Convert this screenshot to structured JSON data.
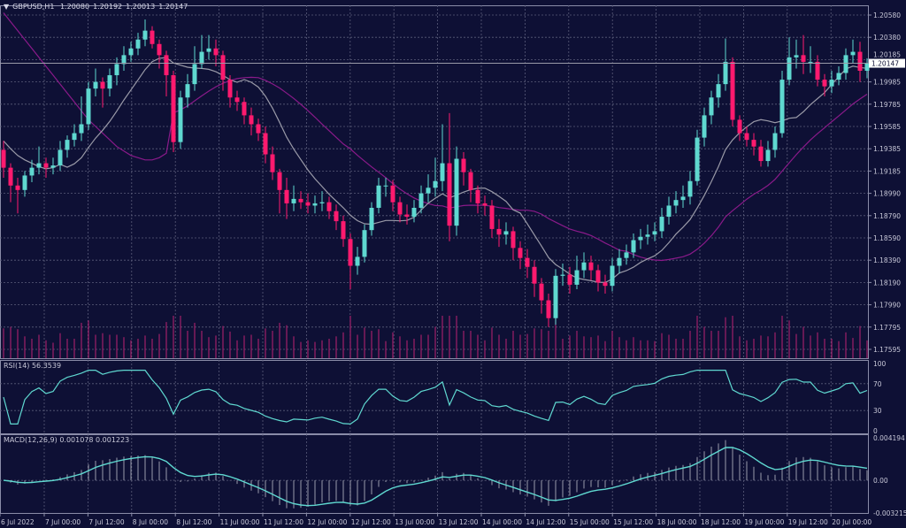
{
  "header": {
    "symbol": "GBPUSD,H1",
    "open": "1.20080",
    "high": "1.20192",
    "low": "1.20013",
    "close": "1.20147"
  },
  "colors": {
    "background": "#0e1035",
    "bull": "#5fd8d0",
    "bear": "#ff1a6e",
    "ma_fast": "#9a9aa8",
    "ma_slow": "#8a1a8a",
    "volume": "#a0206a",
    "grid": "#5a5c7a",
    "indicator": "#5fd8d0"
  },
  "chart_data": [
    {
      "type": "candlestick",
      "title": "GBPUSD,H1",
      "price_axis_ticks": [
        "1.20580",
        "1.20380",
        "1.20185",
        "1.19985",
        "1.19785",
        "1.19585",
        "1.19385",
        "1.19185",
        "1.18990",
        "1.18790",
        "1.18590",
        "1.18390",
        "1.18190",
        "1.17990",
        "1.17795",
        "1.17595"
      ],
      "current_price_label": "1.20147",
      "time_axis_ticks": [
        "6 Jul 2022",
        "7 Jul 00:00",
        "7 Jul 12:00",
        "8 Jul 00:00",
        "8 Jul 12:00",
        "11 Jul 00:00",
        "11 Jul 12:00",
        "12 Jul 00:00",
        "12 Jul 12:00",
        "13 Jul 00:00",
        "13 Jul 12:00",
        "14 Jul 00:00",
        "14 Jul 12:00",
        "15 Jul 00:00",
        "15 Jul 12:00",
        "18 Jul 00:00",
        "18 Jul 12:00",
        "19 Jul 00:00",
        "19 Jul 12:00",
        "20 Jul 00:00"
      ],
      "ylim": [
        1.1755,
        1.2062
      ],
      "grid": true,
      "overlays": [
        "moving average (gray)",
        "moving average (purple)",
        "volume"
      ],
      "candles_ohlc": [
        [
          1.1937,
          1.1945,
          1.1912,
          1.1921
        ],
        [
          1.1921,
          1.1925,
          1.189,
          1.1905
        ],
        [
          1.1905,
          1.1912,
          1.188,
          1.1901
        ],
        [
          1.1901,
          1.1918,
          1.1895,
          1.1914
        ],
        [
          1.1914,
          1.1928,
          1.1908,
          1.1921
        ],
        [
          1.1921,
          1.194,
          1.1915,
          1.1925
        ],
        [
          1.1925,
          1.193,
          1.1912,
          1.1921
        ],
        [
          1.1921,
          1.193,
          1.1915,
          1.1923
        ],
        [
          1.1923,
          1.1945,
          1.1918,
          1.1937
        ],
        [
          1.1937,
          1.195,
          1.193,
          1.1946
        ],
        [
          1.1946,
          1.196,
          1.194,
          1.1952
        ],
        [
          1.1952,
          1.1985,
          1.1945,
          1.196
        ],
        [
          1.196,
          1.1998,
          1.1955,
          1.1992
        ],
        [
          1.1992,
          1.201,
          1.1985,
          1.1998
        ],
        [
          1.1998,
          1.2002,
          1.1975,
          1.1992
        ],
        [
          1.1992,
          1.201,
          1.1985,
          1.2004
        ],
        [
          1.2004,
          1.202,
          1.1995,
          1.2014
        ],
        [
          1.2014,
          1.203,
          1.2008,
          1.2022
        ],
        [
          1.2022,
          1.2034,
          1.2016,
          1.2028
        ],
        [
          1.2028,
          1.2042,
          1.2022,
          1.2036
        ],
        [
          1.2036,
          1.2054,
          1.203,
          1.2044
        ],
        [
          1.2044,
          1.2048,
          1.2028,
          1.2032
        ],
        [
          1.2032,
          1.2036,
          1.201,
          1.2022
        ],
        [
          1.2022,
          1.2026,
          1.1985,
          1.2004
        ],
        [
          1.2004,
          1.2008,
          1.1935,
          1.1944
        ],
        [
          1.1944,
          1.199,
          1.1938,
          1.1984
        ],
        [
          1.1984,
          1.2005,
          1.1975,
          1.1996
        ],
        [
          1.1996,
          1.203,
          1.199,
          1.2014
        ],
        [
          1.2014,
          1.204,
          1.201,
          1.2025
        ],
        [
          1.2025,
          1.204,
          1.2018,
          1.2028
        ],
        [
          1.2028,
          1.2036,
          1.2012,
          1.2022
        ],
        [
          1.2022,
          1.2026,
          1.199,
          1.2
        ],
        [
          1.2,
          1.2004,
          1.1975,
          1.1984
        ],
        [
          1.1984,
          1.199,
          1.1972,
          1.198
        ],
        [
          1.198,
          1.1984,
          1.196,
          1.1968
        ],
        [
          1.1968,
          1.1975,
          1.195,
          1.196
        ],
        [
          1.196,
          1.1965,
          1.1945,
          1.1952
        ],
        [
          1.1952,
          1.1958,
          1.1925,
          1.1933
        ],
        [
          1.1933,
          1.194,
          1.191,
          1.1917
        ],
        [
          1.1917,
          1.192,
          1.188,
          1.1901
        ],
        [
          1.1901,
          1.1912,
          1.1875,
          1.1889
        ],
        [
          1.1889,
          1.1905,
          1.1882,
          1.1893
        ],
        [
          1.1893,
          1.19,
          1.1884,
          1.189
        ],
        [
          1.189,
          1.1898,
          1.188,
          1.1887
        ],
        [
          1.1887,
          1.1896,
          1.188,
          1.1889
        ],
        [
          1.1889,
          1.19,
          1.1882,
          1.189
        ],
        [
          1.189,
          1.1895,
          1.1875,
          1.1882
        ],
        [
          1.1882,
          1.1888,
          1.1865,
          1.1873
        ],
        [
          1.1873,
          1.1878,
          1.185,
          1.1857
        ],
        [
          1.1857,
          1.1862,
          1.1812,
          1.1833
        ],
        [
          1.1833,
          1.185,
          1.1825,
          1.1841
        ],
        [
          1.1841,
          1.187,
          1.1836,
          1.1865
        ],
        [
          1.1865,
          1.189,
          1.186,
          1.1885
        ],
        [
          1.1885,
          1.1912,
          1.188,
          1.1905
        ],
        [
          1.1905,
          1.1912,
          1.1895,
          1.1905
        ],
        [
          1.1905,
          1.191,
          1.1882,
          1.189
        ],
        [
          1.189,
          1.1895,
          1.1872,
          1.1879
        ],
        [
          1.1879,
          1.1888,
          1.187,
          1.1877
        ],
        [
          1.1877,
          1.1892,
          1.1872,
          1.1885
        ],
        [
          1.1885,
          1.1905,
          1.188,
          1.1898
        ],
        [
          1.1898,
          1.1915,
          1.189,
          1.1903
        ],
        [
          1.1903,
          1.193,
          1.1895,
          1.1909
        ],
        [
          1.1909,
          1.196,
          1.19,
          1.1925
        ],
        [
          1.1925,
          1.197,
          1.1855,
          1.1869
        ],
        [
          1.1869,
          1.194,
          1.186,
          1.1929
        ],
        [
          1.1929,
          1.1935,
          1.1905,
          1.1917
        ],
        [
          1.1917,
          1.192,
          1.189,
          1.1901
        ],
        [
          1.1901,
          1.1905,
          1.188,
          1.1889
        ],
        [
          1.1889,
          1.1896,
          1.1878,
          1.1887
        ],
        [
          1.1887,
          1.1892,
          1.1858,
          1.1866
        ],
        [
          1.1866,
          1.1875,
          1.185,
          1.1861
        ],
        [
          1.1861,
          1.1872,
          1.1852,
          1.1864
        ],
        [
          1.1864,
          1.1868,
          1.1838,
          1.1849
        ],
        [
          1.1849,
          1.1855,
          1.183,
          1.184
        ],
        [
          1.184,
          1.1848,
          1.1822,
          1.1832
        ],
        [
          1.1832,
          1.1838,
          1.1805,
          1.1817
        ],
        [
          1.1817,
          1.1822,
          1.179,
          1.1802
        ],
        [
          1.1802,
          1.1808,
          1.1778,
          1.1786
        ],
        [
          1.1786,
          1.183,
          1.178,
          1.1824
        ],
        [
          1.1824,
          1.1835,
          1.1815,
          1.1825
        ],
        [
          1.1825,
          1.1832,
          1.1808,
          1.1816
        ],
        [
          1.1816,
          1.1842,
          1.1812,
          1.1829
        ],
        [
          1.1829,
          1.1845,
          1.1822,
          1.1836
        ],
        [
          1.1836,
          1.1842,
          1.182,
          1.1829
        ],
        [
          1.1829,
          1.1834,
          1.181,
          1.1818
        ],
        [
          1.1818,
          1.1825,
          1.1808,
          1.1815
        ],
        [
          1.1815,
          1.184,
          1.181,
          1.1833
        ],
        [
          1.1833,
          1.1848,
          1.1826,
          1.184
        ],
        [
          1.184,
          1.1852,
          1.1834,
          1.1845
        ],
        [
          1.1845,
          1.1862,
          1.184,
          1.1856
        ],
        [
          1.1856,
          1.1866,
          1.1848,
          1.1859
        ],
        [
          1.1859,
          1.187,
          1.1852,
          1.1861
        ],
        [
          1.1861,
          1.1872,
          1.1855,
          1.1864
        ],
        [
          1.1864,
          1.1885,
          1.1858,
          1.1877
        ],
        [
          1.1877,
          1.1895,
          1.187,
          1.1887
        ],
        [
          1.1887,
          1.19,
          1.188,
          1.1892
        ],
        [
          1.1892,
          1.1905,
          1.1885,
          1.1895
        ],
        [
          1.1895,
          1.1918,
          1.1888,
          1.1909
        ],
        [
          1.1909,
          1.1955,
          1.1905,
          1.1948
        ],
        [
          1.1948,
          1.1975,
          1.194,
          1.1968
        ],
        [
          1.1968,
          1.199,
          1.196,
          1.1984
        ],
        [
          1.1984,
          1.2005,
          1.1975,
          1.1996
        ],
        [
          1.1996,
          1.2037,
          1.199,
          1.2016
        ],
        [
          1.2016,
          1.202,
          1.1958,
          1.1964
        ],
        [
          1.1964,
          1.1968,
          1.1945,
          1.1952
        ],
        [
          1.1952,
          1.1958,
          1.194,
          1.1946
        ],
        [
          1.1946,
          1.1952,
          1.1932,
          1.194
        ],
        [
          1.194,
          1.1946,
          1.1922,
          1.1927
        ],
        [
          1.1927,
          1.1945,
          1.1922,
          1.1937
        ],
        [
          1.1937,
          1.1958,
          1.193,
          1.1952
        ],
        [
          1.1952,
          1.2008,
          1.1948,
          1.2
        ],
        [
          1.2,
          1.2038,
          1.1995,
          1.202
        ],
        [
          1.202,
          1.2036,
          1.201,
          1.2022
        ],
        [
          1.2022,
          1.204,
          1.2005,
          1.2016
        ],
        [
          1.2016,
          1.203,
          1.2006,
          1.2016
        ],
        [
          1.2016,
          1.2022,
          1.1994,
          1.2
        ],
        [
          1.2,
          1.2005,
          1.1985,
          1.1994
        ],
        [
          1.1994,
          1.2008,
          1.1988,
          1.2
        ],
        [
          1.2,
          1.2012,
          1.1995,
          1.2006
        ],
        [
          1.2006,
          1.2028,
          1.2,
          1.2022
        ],
        [
          1.2022,
          1.2036,
          1.2015,
          1.2025
        ],
        [
          1.2025,
          1.2034,
          1.1998,
          1.2008
        ],
        [
          1.2008,
          1.20192,
          1.20013,
          1.20147
        ]
      ]
    },
    {
      "type": "line",
      "title": "RSI(14) 56.3539",
      "label": "RSI(14)",
      "value": "56.3539",
      "axis_ticks": [
        "100",
        "70",
        "30",
        "0"
      ],
      "ylim": [
        0,
        100
      ],
      "levels": [
        70,
        30
      ]
    },
    {
      "type": "line",
      "title": "MACD(12,26,9) 0.001078 0.001223",
      "label": "MACD(12,26,9)",
      "main": "0.001078",
      "signal": "0.001223",
      "axis_ticks": [
        "0.004194",
        "0.00",
        "-0.003215"
      ],
      "ylim": [
        -0.003215,
        0.004194
      ]
    }
  ]
}
